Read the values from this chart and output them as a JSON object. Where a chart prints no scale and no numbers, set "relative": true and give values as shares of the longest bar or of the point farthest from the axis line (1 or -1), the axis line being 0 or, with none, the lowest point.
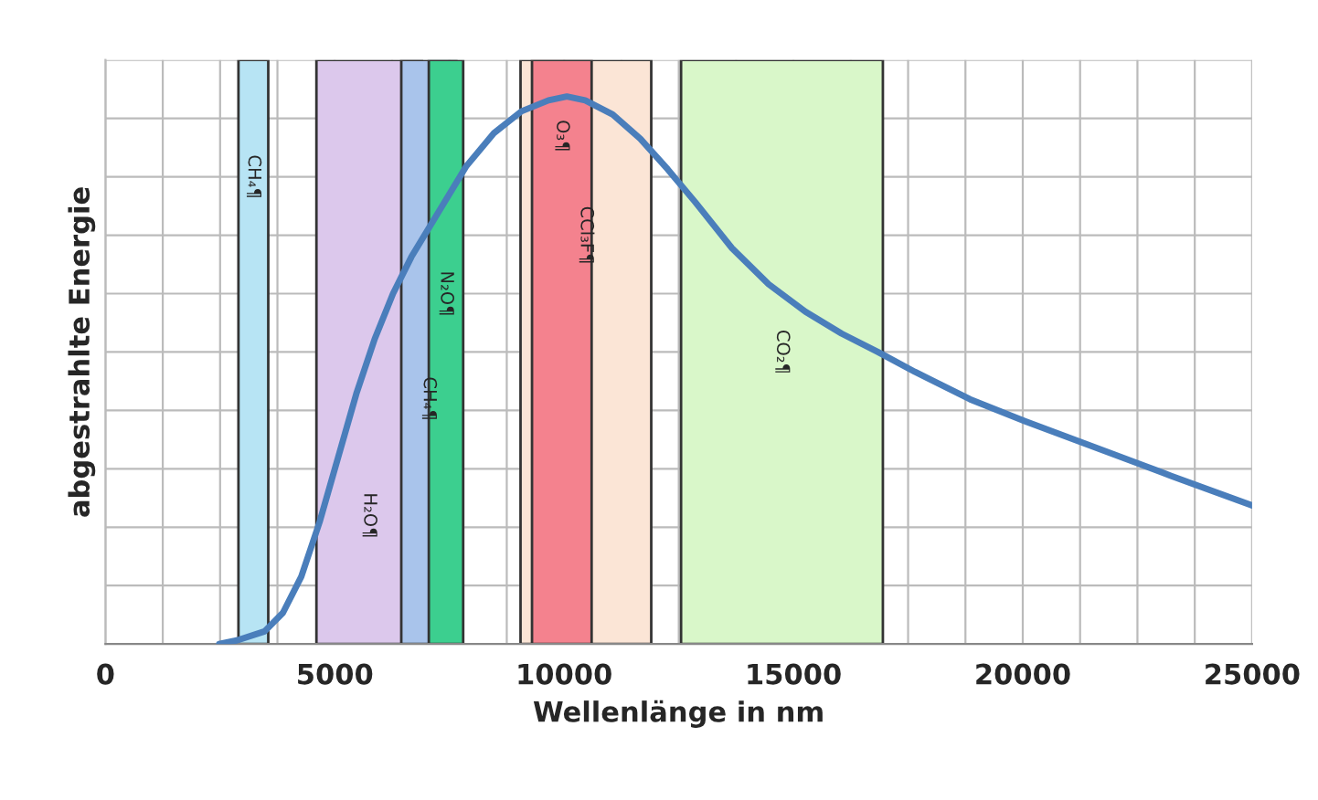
{
  "chart_data": {
    "type": "line",
    "xlabel": "Wellenlänge in nm",
    "ylabel": "abgestrahlte Energie",
    "relative": true,
    "x": [
      2480,
      2880,
      3470,
      3870,
      4270,
      4670,
      5070,
      5470,
      5870,
      6270,
      6670,
      7270,
      7870,
      8470,
      9070,
      9660,
      10060,
      10460,
      11060,
      11660,
      12260,
      12860,
      13660,
      14460,
      15260,
      16050,
      16850,
      17650,
      18850,
      20050,
      21650,
      23240,
      25000
    ],
    "series": [
      {
        "color": "#4a7ebb",
        "values": [
          0.0,
          0.007,
          0.023,
          0.057,
          0.123,
          0.223,
          0.34,
          0.457,
          0.557,
          0.64,
          0.707,
          0.79,
          0.873,
          0.933,
          0.973,
          0.993,
          1.0,
          0.993,
          0.967,
          0.923,
          0.867,
          0.807,
          0.723,
          0.657,
          0.607,
          0.567,
          0.533,
          0.497,
          0.447,
          0.407,
          0.357,
          0.307,
          0.253
        ]
      }
    ],
    "xlim": [
      0,
      25000
    ],
    "xticks": [
      0,
      {
        "value": 1250,
        "label": null
      },
      {
        "value": 2500,
        "label": null
      },
      {
        "value": 3750,
        "label": null
      },
      5000,
      {
        "value": 6250,
        "label": null
      },
      {
        "value": 7500,
        "label": null
      },
      {
        "value": 8750,
        "label": null
      },
      10000,
      {
        "value": 11250,
        "label": null
      },
      {
        "value": 12500,
        "label": null
      },
      {
        "value": 13750,
        "label": null
      },
      15000,
      {
        "value": 16250,
        "label": null
      },
      {
        "value": 17500,
        "label": null
      },
      {
        "value": 18750,
        "label": null
      },
      20000,
      {
        "value": 21250,
        "label": null
      },
      {
        "value": 22500,
        "label": null
      },
      {
        "value": 23750,
        "label": null
      },
      25000
    ],
    "bands": [
      {
        "axis": "x",
        "from": 2900,
        "to": 3550,
        "label": "CH₄¶",
        "color": "#b7e4f4"
      },
      {
        "axis": "x",
        "from": 4600,
        "to": 6900,
        "label": "H₂O¶",
        "color": "#dcc8ec"
      },
      {
        "axis": "x",
        "from": 6450,
        "to": 7650,
        "label": "CH₄¶",
        "color": "#a9c4eb"
      },
      {
        "axis": "x",
        "from": 7050,
        "to": 7800,
        "label": "N₂O¶",
        "color": "#3ccf8f"
      },
      {
        "axis": "x",
        "from": 9050,
        "to": 11900,
        "label": "CCl₃F¶",
        "color": "#fbe5d6"
      },
      {
        "axis": "x",
        "from": 9300,
        "to": 10600,
        "label": "O₃¶",
        "color": "#f4828e"
      },
      {
        "axis": "x",
        "from": 12550,
        "to": 16950,
        "label": "CO₂¶",
        "color": "#d9f7c9"
      }
    ],
    "grid": true,
    "tick_labels": "x",
    "legend": false,
    "marker": "none",
    "line_style": "solid"
  }
}
